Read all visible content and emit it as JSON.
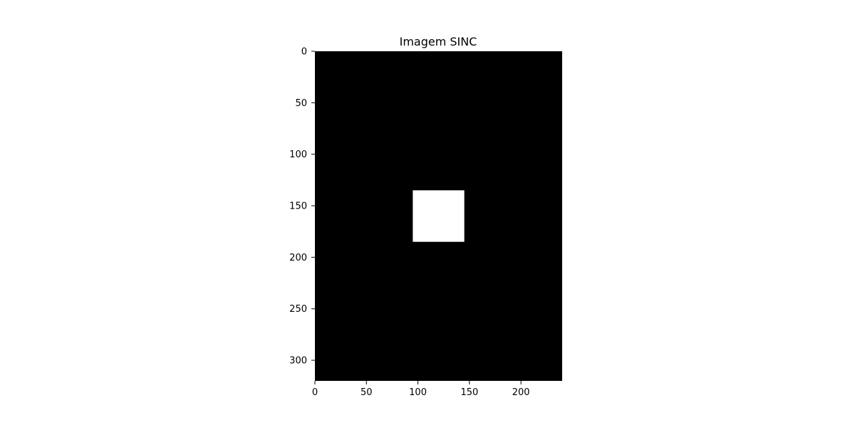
{
  "chart_data": {
    "type": "heatmap",
    "title": "Imagem SINC",
    "xlabel": "",
    "ylabel": "",
    "image_width": 240,
    "image_height": 320,
    "xlim": [
      0,
      240
    ],
    "ylim": [
      320,
      0
    ],
    "x_ticks": [
      0,
      50,
      100,
      150,
      200
    ],
    "y_ticks": [
      0,
      50,
      100,
      150,
      200,
      250,
      300
    ],
    "grid": false,
    "legend": "none",
    "background_value": 0,
    "regions": [
      {
        "x_range": [
          95,
          145
        ],
        "y_range": [
          135,
          185
        ],
        "value": 1
      }
    ],
    "colormap": {
      "0": "#000000",
      "1": "#ffffff"
    }
  }
}
